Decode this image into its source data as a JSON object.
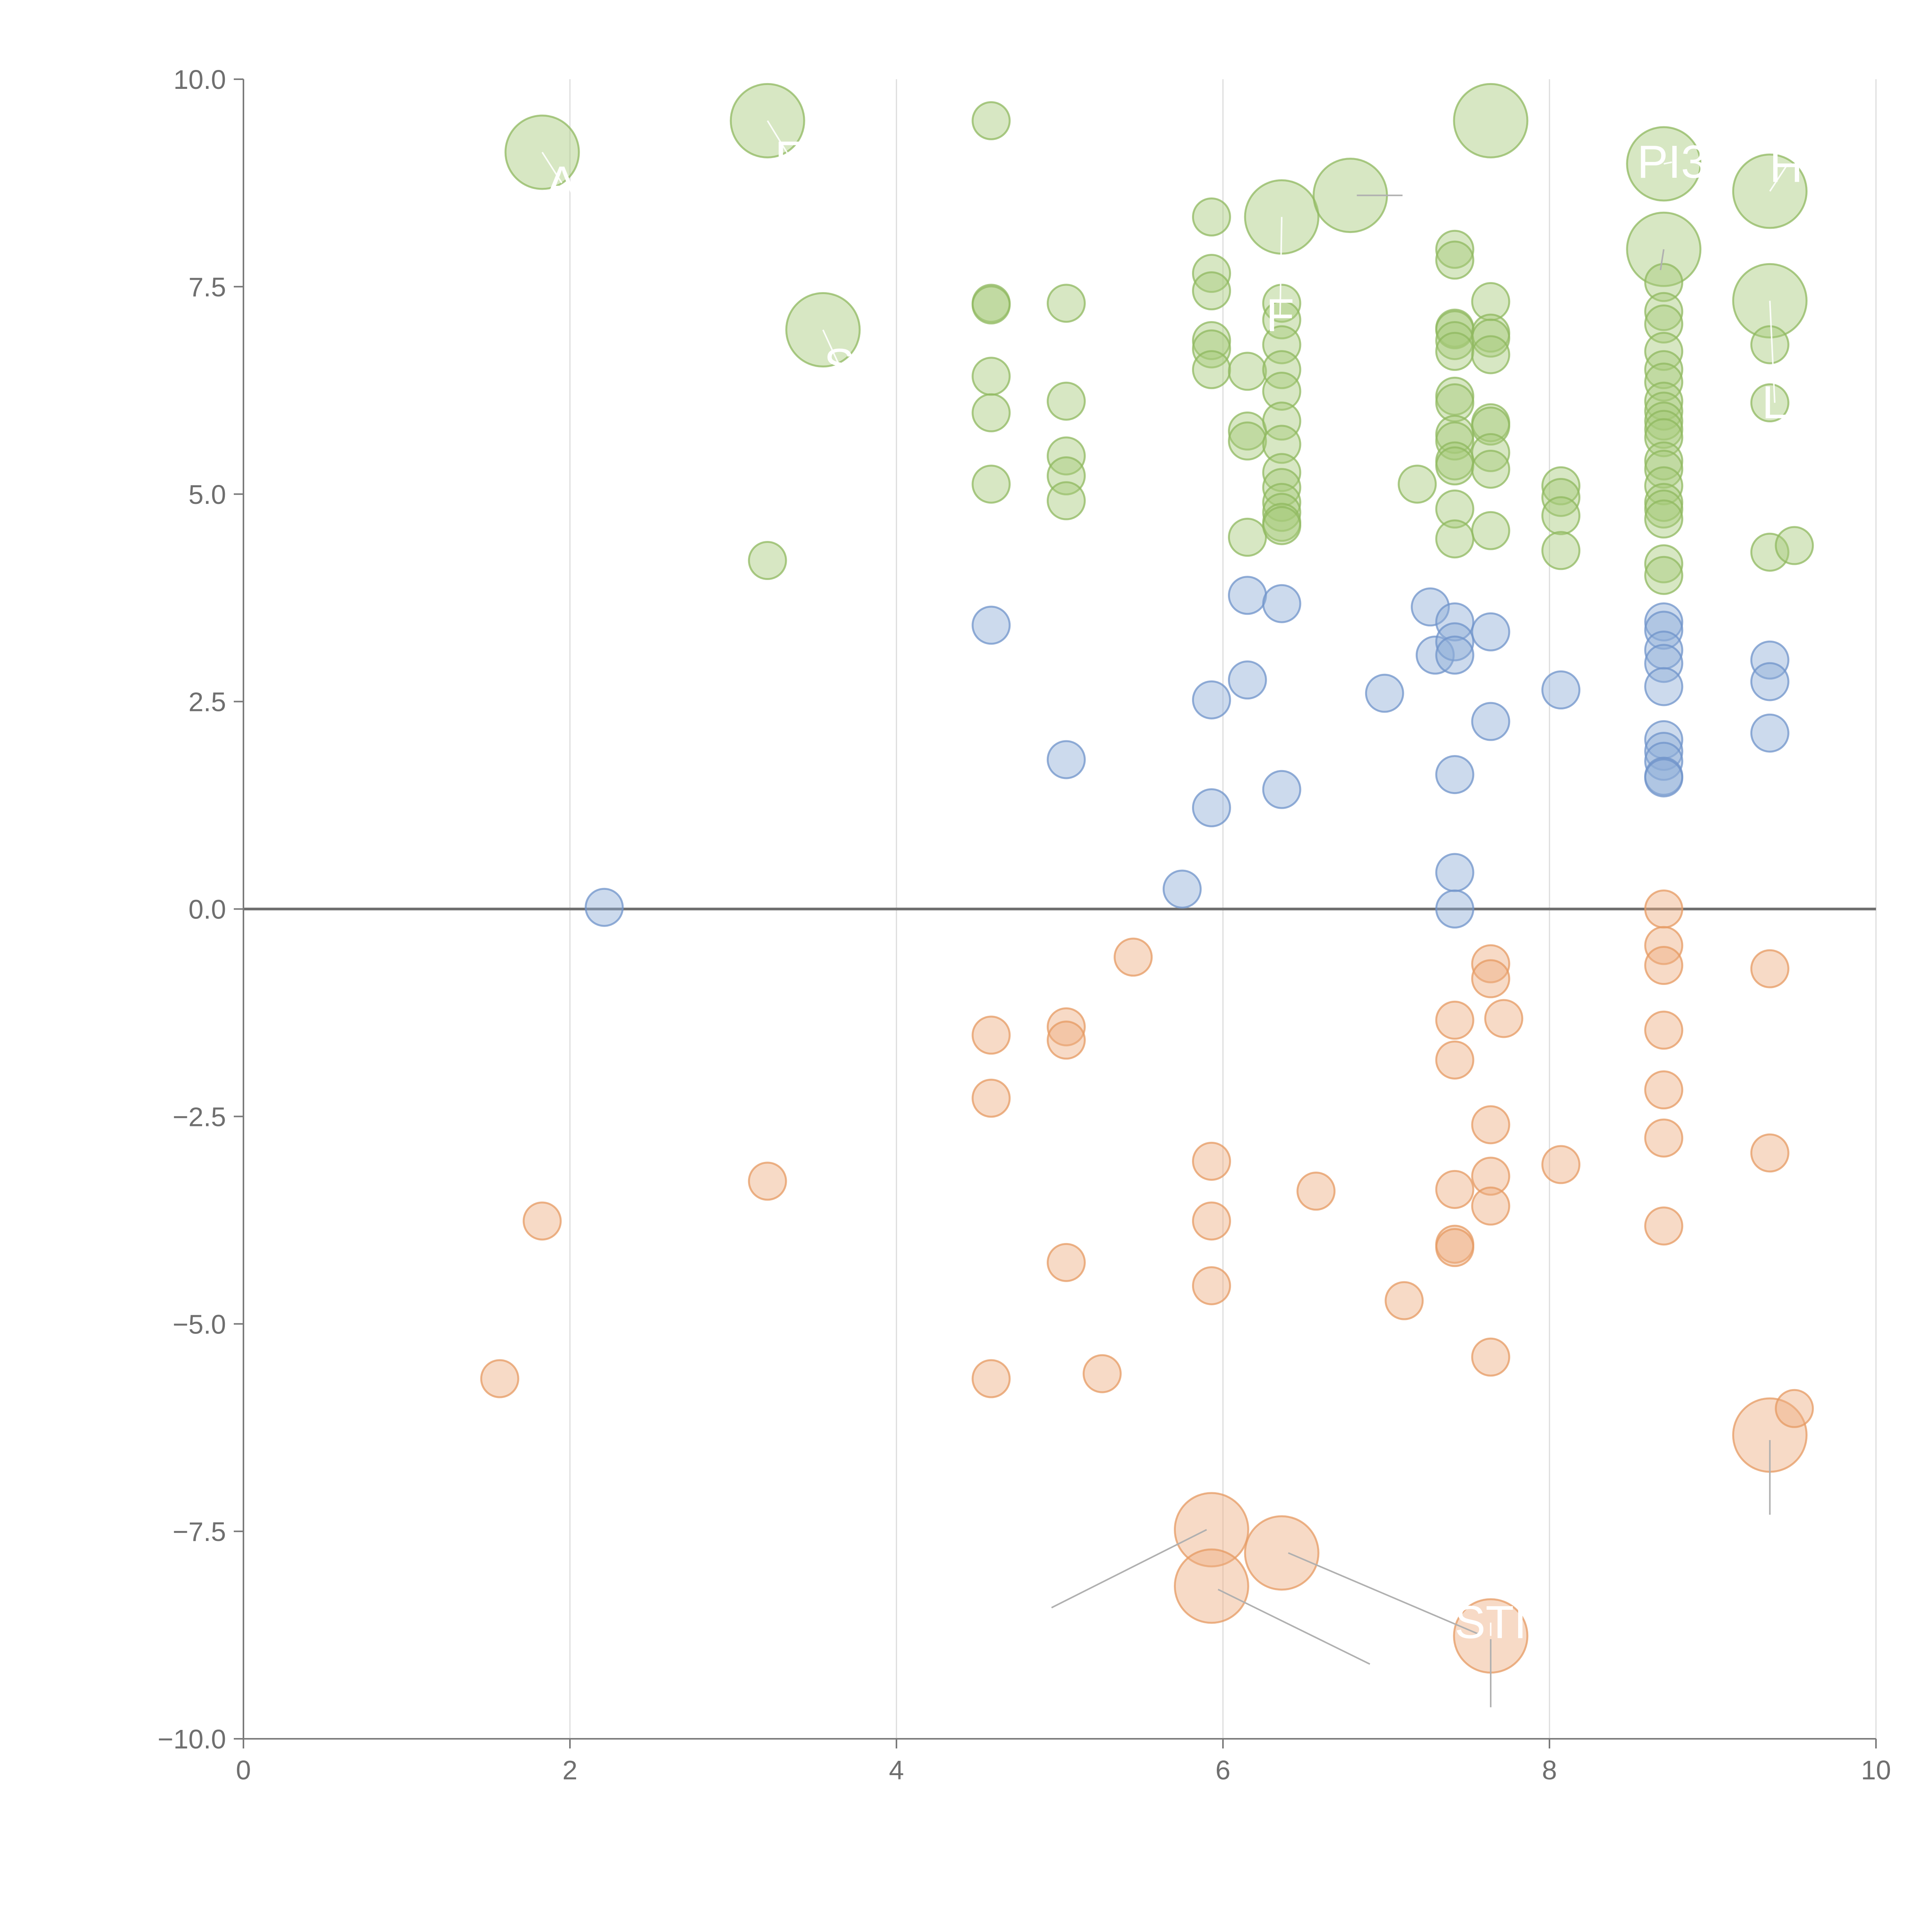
{
  "chart_data": {
    "type": "scatter",
    "title": "",
    "xlabel": "",
    "ylabel": "",
    "xlim": [
      0,
      10
    ],
    "ylim": [
      -10,
      10
    ],
    "grid": "vertical",
    "x_ticks": [
      "0",
      "2",
      "4",
      "6",
      "8",
      "10"
    ],
    "x_tick_values": [
      0,
      2,
      4,
      6,
      8,
      10
    ],
    "y_ticks": [
      "10.0",
      "7.5",
      "5.0",
      "2.5",
      "0.0",
      "−2.5",
      "−5.0",
      "−7.5",
      "−10.0"
    ],
    "y_tick_values": [
      10,
      7.5,
      5,
      2.5,
      0,
      -2.5,
      -5,
      -7.5,
      -10
    ],
    "colors": {
      "green_fill": "#a6c97a",
      "green_stroke": "#8fb85f",
      "blue_fill": "#8eaed8",
      "blue_stroke": "#6f93c9",
      "orange_fill": "#eeae80",
      "orange_stroke": "#e59a62",
      "axis": "#7a7a7a",
      "grid": "#dcdcdc",
      "label": "#ffffff"
    },
    "series": [
      {
        "name": "green",
        "points": [
          [
            1.83,
            9.12,
            "big"
          ],
          [
            3.21,
            9.5,
            "big"
          ],
          [
            3.55,
            6.98,
            "big"
          ],
          [
            6.36,
            8.34,
            "big"
          ],
          [
            6.78,
            8.6,
            "big"
          ],
          [
            7.64,
            9.5,
            "big"
          ],
          [
            8.7,
            8.98,
            "big"
          ],
          [
            8.7,
            7.95,
            "big"
          ],
          [
            9.35,
            8.65,
            "big"
          ],
          [
            9.35,
            7.33,
            "big"
          ],
          [
            3.21,
            4.2
          ],
          [
            4.58,
            9.5
          ],
          [
            4.58,
            7.3
          ],
          [
            4.58,
            7.28
          ],
          [
            4.58,
            6.42
          ],
          [
            4.58,
            5.98
          ],
          [
            4.58,
            5.12
          ],
          [
            5.04,
            7.3
          ],
          [
            5.04,
            6.12
          ],
          [
            5.04,
            5.46
          ],
          [
            5.04,
            5.22
          ],
          [
            5.04,
            4.92
          ],
          [
            5.93,
            8.34
          ],
          [
            5.93,
            7.66
          ],
          [
            5.93,
            7.45
          ],
          [
            5.93,
            6.85
          ],
          [
            5.93,
            6.75
          ],
          [
            5.93,
            6.5
          ],
          [
            6.15,
            6.48
          ],
          [
            6.15,
            5.76
          ],
          [
            6.15,
            5.64
          ],
          [
            6.15,
            4.48
          ],
          [
            6.36,
            7.3
          ],
          [
            6.36,
            7.1
          ],
          [
            6.36,
            6.8
          ],
          [
            6.36,
            6.5
          ],
          [
            6.36,
            6.24
          ],
          [
            6.36,
            5.88
          ],
          [
            6.36,
            5.6
          ],
          [
            6.36,
            5.26
          ],
          [
            6.36,
            5.08
          ],
          [
            6.36,
            4.9
          ],
          [
            6.36,
            4.78
          ],
          [
            6.36,
            4.66
          ],
          [
            6.36,
            4.62
          ],
          [
            7.19,
            5.12
          ],
          [
            7.42,
            7.95
          ],
          [
            7.42,
            7.82
          ],
          [
            7.42,
            7.0
          ],
          [
            7.42,
            6.98
          ],
          [
            7.42,
            6.85
          ],
          [
            7.42,
            6.72
          ],
          [
            7.42,
            6.18
          ],
          [
            7.42,
            6.1
          ],
          [
            7.42,
            5.72
          ],
          [
            7.42,
            5.64
          ],
          [
            7.42,
            5.4
          ],
          [
            7.42,
            5.34
          ],
          [
            7.42,
            4.82
          ],
          [
            7.42,
            4.46
          ],
          [
            7.64,
            7.32
          ],
          [
            7.64,
            6.94
          ],
          [
            7.64,
            6.88
          ],
          [
            7.64,
            6.68
          ],
          [
            7.64,
            5.86
          ],
          [
            7.64,
            5.82
          ],
          [
            7.64,
            5.5
          ],
          [
            7.64,
            5.3
          ],
          [
            7.64,
            4.56
          ],
          [
            8.07,
            5.1
          ],
          [
            8.07,
            4.96
          ],
          [
            8.07,
            4.74
          ],
          [
            8.07,
            4.32
          ],
          [
            8.7,
            7.55
          ],
          [
            8.7,
            7.2
          ],
          [
            8.7,
            7.05
          ],
          [
            8.7,
            6.72
          ],
          [
            8.7,
            6.5
          ],
          [
            8.7,
            6.35
          ],
          [
            8.7,
            6.12
          ],
          [
            8.7,
            6.0
          ],
          [
            8.7,
            5.88
          ],
          [
            8.7,
            5.78
          ],
          [
            8.7,
            5.68
          ],
          [
            8.7,
            5.4
          ],
          [
            8.7,
            5.3
          ],
          [
            8.7,
            5.1
          ],
          [
            8.7,
            4.9
          ],
          [
            8.7,
            4.82
          ],
          [
            8.7,
            4.7
          ],
          [
            8.7,
            4.16
          ],
          [
            8.7,
            4.02
          ],
          [
            9.35,
            6.8
          ],
          [
            9.35,
            6.1
          ],
          [
            9.35,
            4.3
          ],
          [
            9.5,
            4.38
          ]
        ]
      },
      {
        "name": "blue",
        "points": [
          [
            2.21,
            0.02
          ],
          [
            4.58,
            3.42
          ],
          [
            5.04,
            1.8
          ],
          [
            5.75,
            0.24
          ],
          [
            5.93,
            2.52
          ],
          [
            5.93,
            1.22
          ],
          [
            6.15,
            3.78
          ],
          [
            6.15,
            2.76
          ],
          [
            6.36,
            3.68
          ],
          [
            6.36,
            1.44
          ],
          [
            6.99,
            2.6
          ],
          [
            7.27,
            3.64
          ],
          [
            7.3,
            3.06
          ],
          [
            7.42,
            3.46
          ],
          [
            7.42,
            3.22
          ],
          [
            7.42,
            3.06
          ],
          [
            7.42,
            1.62
          ],
          [
            7.42,
            0.44
          ],
          [
            7.42,
            0.0
          ],
          [
            7.64,
            3.34
          ],
          [
            7.64,
            2.26
          ],
          [
            8.07,
            2.64
          ],
          [
            8.7,
            3.46
          ],
          [
            8.7,
            3.36
          ],
          [
            8.7,
            3.12
          ],
          [
            8.7,
            2.96
          ],
          [
            8.7,
            2.68
          ],
          [
            8.7,
            2.04
          ],
          [
            8.7,
            1.9
          ],
          [
            8.7,
            1.78
          ],
          [
            8.7,
            1.6
          ],
          [
            8.7,
            1.58
          ],
          [
            9.35,
            3.0
          ],
          [
            9.35,
            2.74
          ],
          [
            9.35,
            2.12
          ]
        ]
      },
      {
        "name": "orange",
        "points": [
          [
            5.93,
            -7.48,
            "big"
          ],
          [
            5.93,
            -8.16,
            "big"
          ],
          [
            6.36,
            -7.76,
            "big"
          ],
          [
            7.64,
            -8.76,
            "big"
          ],
          [
            9.35,
            -6.34,
            "big"
          ],
          [
            1.57,
            -5.66
          ],
          [
            1.83,
            -3.76
          ],
          [
            3.21,
            -3.28
          ],
          [
            4.58,
            -1.52
          ],
          [
            4.58,
            -2.28
          ],
          [
            4.58,
            -5.66
          ],
          [
            5.04,
            -1.42
          ],
          [
            5.04,
            -1.58
          ],
          [
            5.04,
            -4.26
          ],
          [
            5.26,
            -5.6
          ],
          [
            5.45,
            -0.58
          ],
          [
            5.93,
            -3.04
          ],
          [
            5.93,
            -3.76
          ],
          [
            5.93,
            -4.54
          ],
          [
            6.57,
            -3.4
          ],
          [
            7.11,
            -4.72
          ],
          [
            7.42,
            -1.34
          ],
          [
            7.42,
            -1.82
          ],
          [
            7.42,
            -3.38
          ],
          [
            7.42,
            -4.04
          ],
          [
            7.42,
            -4.08
          ],
          [
            7.64,
            -0.66
          ],
          [
            7.64,
            -0.84
          ],
          [
            7.64,
            -2.6
          ],
          [
            7.64,
            -3.22
          ],
          [
            7.64,
            -3.58
          ],
          [
            7.64,
            -5.4
          ],
          [
            7.72,
            -1.32
          ],
          [
            8.07,
            -3.08
          ],
          [
            8.7,
            0.0
          ],
          [
            8.7,
            -0.44
          ],
          [
            8.7,
            -0.68
          ],
          [
            8.7,
            -1.46
          ],
          [
            8.7,
            -2.18
          ],
          [
            8.7,
            -2.76
          ],
          [
            8.7,
            -3.82
          ],
          [
            9.35,
            -0.72
          ],
          [
            9.35,
            -2.94
          ],
          [
            9.5,
            -6.02
          ]
        ]
      }
    ],
    "annotations": [
      {
        "text": "A",
        "label_xy": [
          1.95,
          8.75
        ],
        "target": [
          1.83,
          9.12
        ]
      },
      {
        "text": "E",
        "label_xy": [
          3.35,
          9.05
        ],
        "target": [
          3.21,
          9.5
        ]
      },
      {
        "text": "S",
        "label_xy": [
          3.65,
          6.55
        ],
        "target": [
          3.55,
          6.98
        ]
      },
      {
        "text": "F",
        "label_xy": [
          6.35,
          7.15
        ],
        "target": [
          6.36,
          8.34
        ]
      },
      {
        "text": "PI3",
        "label_xy": [
          8.75,
          9.0
        ],
        "target": [
          8.7,
          8.98
        ]
      },
      {
        "text": "H",
        "label_xy": [
          9.45,
          8.95
        ],
        "target": [
          9.35,
          8.65
        ]
      },
      {
        "text": "L",
        "label_xy": [
          9.38,
          6.1
        ],
        "target": [
          9.35,
          7.33
        ]
      },
      {
        "text": "STI",
        "label_xy": [
          7.64,
          -8.6
        ],
        "target": [
          7.64,
          -8.76
        ]
      }
    ],
    "leader_lines": [
      [
        [
          7.64,
          -9.62
        ],
        [
          7.64,
          -8.8
        ]
      ],
      [
        [
          9.35,
          -7.3
        ],
        [
          9.35,
          -6.4
        ]
      ],
      [
        [
          4.95,
          -8.42
        ],
        [
          5.9,
          -7.48
        ]
      ],
      [
        [
          6.9,
          -9.1
        ],
        [
          5.97,
          -8.2
        ]
      ],
      [
        [
          7.58,
          -8.75
        ],
        [
          6.4,
          -7.76
        ]
      ],
      [
        [
          7.1,
          8.6
        ],
        [
          6.82,
          8.6
        ]
      ],
      [
        [
          8.7,
          7.95
        ],
        [
          8.68,
          7.7
        ]
      ]
    ]
  }
}
